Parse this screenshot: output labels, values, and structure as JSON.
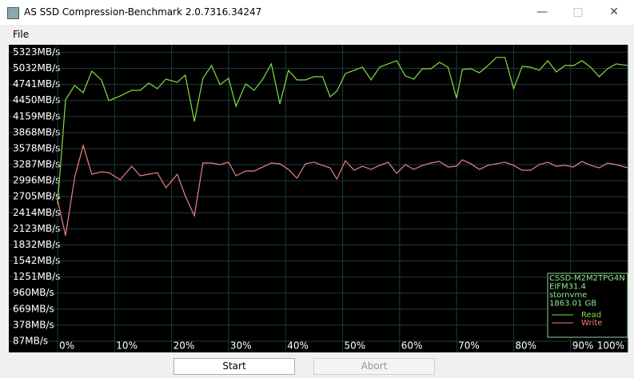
{
  "window": {
    "title": "AS SSD Compression-Benchmark 2.0.7316.34247",
    "menu": [
      "File"
    ],
    "buttons": [
      "Start",
      "Abort"
    ]
  },
  "chart_data": {
    "type": "line",
    "legend_info": [
      "CSSD-M2M2TPG4N",
      "EIFM31.4",
      "stornvme",
      "1863.01 GB"
    ],
    "x": [
      0,
      1.4,
      3,
      4.5,
      6,
      7.7,
      9,
      11,
      13,
      14.5,
      16,
      17.5,
      19,
      21,
      22.4,
      24,
      25.5,
      27,
      28.5,
      30,
      31.3,
      33,
      34.5,
      36,
      37.5,
      39,
      40.5,
      42,
      43.5,
      45,
      46.5,
      47.8,
      49,
      50.5,
      52,
      53.5,
      55,
      56.5,
      58,
      59.5,
      61,
      62.5,
      64,
      65.5,
      67,
      68.5,
      70,
      71,
      72.5,
      74,
      75.5,
      77,
      78.5,
      80,
      81.5,
      83,
      84.5,
      86,
      87.5,
      89,
      90.5,
      92,
      93.5,
      95,
      96.5,
      98,
      100
    ],
    "series": [
      {
        "name": "Read",
        "color": "#80e040",
        "values": [
          2577,
          4460,
          4721,
          4590,
          4981,
          4822,
          4446,
          4532,
          4634,
          4634,
          4764,
          4663,
          4836,
          4779,
          4909,
          4069,
          4851,
          5083,
          4735,
          4851,
          4344,
          4750,
          4634,
          4836,
          5112,
          4388,
          4995,
          4822,
          4822,
          4880,
          4880,
          4518,
          4619,
          4938,
          4995,
          5054,
          4822,
          5054,
          5112,
          5170,
          4894,
          4836,
          5025,
          5025,
          5141,
          5054,
          4489,
          5010,
          5025,
          4952,
          5083,
          5228,
          5228,
          4663,
          5068,
          5054,
          4995,
          5170,
          4967,
          5083,
          5083,
          5170,
          5054,
          4880,
          5025,
          5112,
          5083
        ]
      },
      {
        "name": "Write",
        "color": "#f08080",
        "values": [
          2650,
          2000,
          3055,
          3635,
          3113,
          3157,
          3142,
          3012,
          3258,
          3084,
          3113,
          3142,
          2867,
          3113,
          2722,
          2360,
          3316,
          3316,
          3287,
          3331,
          3084,
          3171,
          3171,
          3244,
          3316,
          3302,
          3200,
          3041,
          3302,
          3331,
          3273,
          3229,
          3026,
          3359,
          3186,
          3258,
          3200,
          3273,
          3331,
          3128,
          3287,
          3200,
          3273,
          3316,
          3345,
          3244,
          3258,
          3374,
          3302,
          3200,
          3273,
          3302,
          3331,
          3273,
          3186,
          3186,
          3287,
          3331,
          3258,
          3273,
          3244,
          3345,
          3273,
          3229,
          3316,
          3287,
          3229
        ]
      }
    ],
    "xlim": [
      0,
      100
    ],
    "ylim": [
      -116,
      5459
    ],
    "xticks": [
      {
        "value": 0,
        "label": "0%"
      },
      {
        "value": 10,
        "label": "10%"
      },
      {
        "value": 20,
        "label": "20%"
      },
      {
        "value": 30,
        "label": "30%"
      },
      {
        "value": 40,
        "label": "40%"
      },
      {
        "value": 50,
        "label": "50%"
      },
      {
        "value": 60,
        "label": "60%"
      },
      {
        "value": 70,
        "label": "70%"
      },
      {
        "value": 80,
        "label": "80%"
      },
      {
        "value": 90,
        "label": "90%"
      },
      {
        "value": 100,
        "label": "100%"
      }
    ],
    "yticks": [
      {
        "value": 87,
        "label": "87MB/s"
      },
      {
        "value": 378,
        "label": "378MB/s"
      },
      {
        "value": 669,
        "label": "669MB/s"
      },
      {
        "value": 960,
        "label": "960MB/s"
      },
      {
        "value": 1251,
        "label": "1251MB/s"
      },
      {
        "value": 1542,
        "label": "1542MB/s"
      },
      {
        "value": 1832,
        "label": "1832MB/s"
      },
      {
        "value": 2123,
        "label": "2123MB/s"
      },
      {
        "value": 2414,
        "label": "2414MB/s"
      },
      {
        "value": 2705,
        "label": "2705MB/s"
      },
      {
        "value": 2996,
        "label": "2996MB/s"
      },
      {
        "value": 3287,
        "label": "3287MB/s"
      },
      {
        "value": 3578,
        "label": "3578MB/s"
      },
      {
        "value": 3868,
        "label": "3868MB/s"
      },
      {
        "value": 4159,
        "label": "4159MB/s"
      },
      {
        "value": 4450,
        "label": "4450MB/s"
      },
      {
        "value": 4741,
        "label": "4741MB/s"
      },
      {
        "value": 5032,
        "label": "5032MB/s"
      },
      {
        "value": 5323,
        "label": "5323MB/s"
      }
    ],
    "grid": true
  }
}
